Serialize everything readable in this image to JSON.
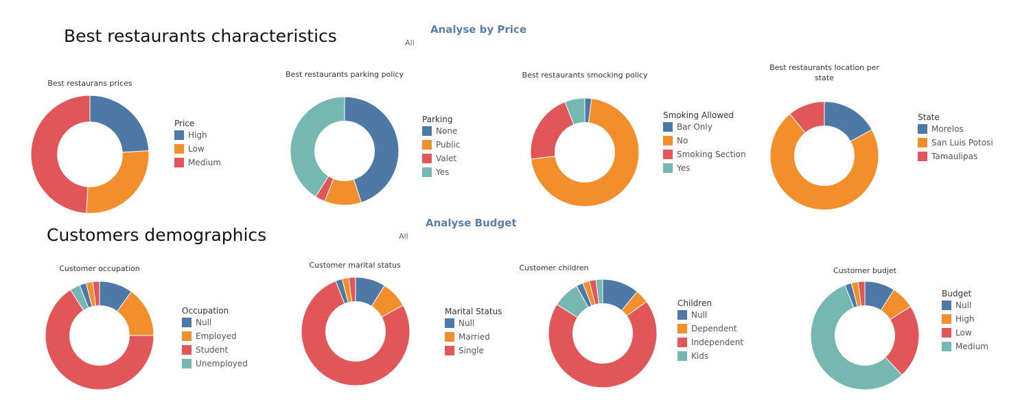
{
  "colors": {
    "blue": "#4e79a7",
    "orange": "#f28e2b",
    "red": "#e15759",
    "teal": "#76b7b2"
  },
  "header": {
    "section1_title": "Best restaurants characteristics",
    "section2_title": "Customers demographics",
    "filter1": {
      "title": "Analyse by Price",
      "value": "All"
    },
    "filter2": {
      "title": "Analyse Budget",
      "value": "All"
    }
  },
  "chart_data": [
    {
      "type": "pie",
      "title": "Best restaurans prices",
      "legend_title": "Price",
      "categories": [
        "High",
        "Low",
        "Medium"
      ],
      "values": [
        24,
        27,
        49
      ],
      "colors": [
        "#4e79a7",
        "#f28e2b",
        "#e15759"
      ]
    },
    {
      "type": "pie",
      "title": "Best restaurants parking policy",
      "legend_title": "Parking",
      "categories": [
        "None",
        "Public",
        "Valet",
        "Yes"
      ],
      "values": [
        45,
        11,
        3,
        41
      ],
      "colors": [
        "#4e79a7",
        "#f28e2b",
        "#e15759",
        "#76b7b2"
      ]
    },
    {
      "type": "pie",
      "title": "Best restaurants smocking policy",
      "legend_title": "Smoking Allowed",
      "categories": [
        "Bar Only",
        "No",
        "Smoking Section",
        "Yes"
      ],
      "values": [
        2,
        71,
        21,
        6
      ],
      "colors": [
        "#4e79a7",
        "#f28e2b",
        "#e15759",
        "#76b7b2"
      ]
    },
    {
      "type": "pie",
      "title": "Best restaurants location per state",
      "legend_title": "State",
      "categories": [
        "Morelos",
        "San Luis Potosi",
        "Tamaulipas"
      ],
      "values": [
        17,
        72,
        11
      ],
      "colors": [
        "#4e79a7",
        "#f28e2b",
        "#e15759"
      ]
    },
    {
      "type": "pie",
      "title": "Customer occupation",
      "legend_title": "Occupation",
      "categories": [
        "Null",
        "Employed",
        "Student",
        "Unemployed"
      ],
      "values": [
        10,
        15,
        66,
        3
      ],
      "extra_slices": [
        2,
        2,
        2
      ],
      "colors": [
        "#4e79a7",
        "#f28e2b",
        "#e15759",
        "#76b7b2"
      ]
    },
    {
      "type": "pie",
      "title": "Customer marital status",
      "legend_title": "Marital Status",
      "categories": [
        "Null",
        "Married",
        "Single"
      ],
      "values": [
        9,
        8,
        77
      ],
      "extra_slices": [
        2,
        2,
        2
      ],
      "colors": [
        "#4e79a7",
        "#f28e2b",
        "#e15759"
      ]
    },
    {
      "type": "pie",
      "title": "Customer children",
      "legend_title": "Children",
      "categories": [
        "Null",
        "Dependent",
        "Independent",
        "Kids"
      ],
      "values": [
        11,
        4,
        69,
        8
      ],
      "extra_slices": [
        2,
        2,
        2,
        2
      ],
      "colors": [
        "#4e79a7",
        "#f28e2b",
        "#e15759",
        "#76b7b2"
      ]
    },
    {
      "type": "pie",
      "title": "Customer budjet",
      "legend_title": "Budget",
      "categories": [
        "Null",
        "High",
        "Low",
        "Medium"
      ],
      "values": [
        9,
        7,
        22,
        56
      ],
      "extra_slices": [
        2,
        2,
        2
      ],
      "colors": [
        "#4e79a7",
        "#f28e2b",
        "#e15759",
        "#76b7b2"
      ]
    }
  ]
}
